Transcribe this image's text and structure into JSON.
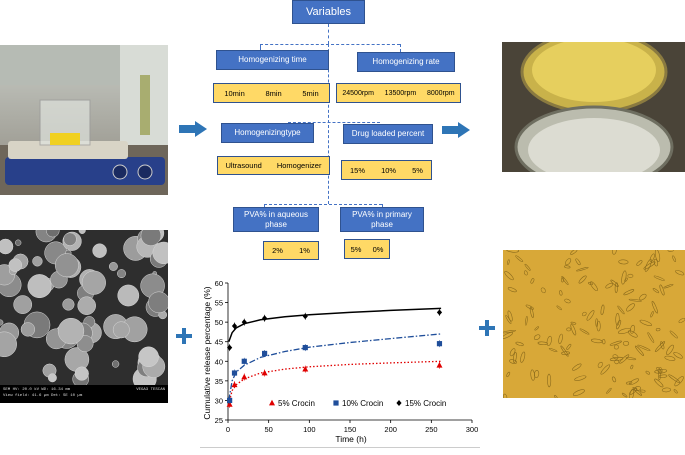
{
  "diagram": {
    "root": "Variables",
    "groups": [
      {
        "label": "Homogenizing time",
        "values": [
          "10min",
          "8min",
          "5min"
        ]
      },
      {
        "label": "Homogenizing rate",
        "values": [
          "24500rpm",
          "13500rpm",
          "8000rpm"
        ]
      },
      {
        "label": "Homogenizingtype",
        "values": [
          "Ultrasound",
          "Homogenizer"
        ]
      },
      {
        "label": "Drug loaded percent",
        "values": [
          "15%",
          "10%",
          "5%"
        ]
      },
      {
        "label": "PVA% in aqueous phase",
        "values": [
          "2%",
          "1%"
        ]
      },
      {
        "label": "PVA% in primary phase",
        "values": [
          "5%",
          "0%"
        ]
      }
    ]
  },
  "sem_overlay": {
    "line1": "SEM HV: 20.0 kV   WD: 16.34 mm",
    "line2": "View field: 41.6 µm   Det: SE   10 µm",
    "brand": "VEGA3 TESCAN"
  },
  "icons": {
    "arrow": "right-arrow-icon",
    "plus": "plus-icon"
  },
  "colors": {
    "accent": "#4472c4",
    "box_fill": "#ffd966",
    "red_series": "#e00000",
    "blue_series": "#1f4e9a",
    "black_series": "#000000"
  },
  "chart_data": {
    "type": "scatter",
    "title": "",
    "xlabel": "Time (h)",
    "ylabel": "Cumulative release percentage (%)",
    "xlim": [
      0,
      300
    ],
    "ylim": [
      25,
      60
    ],
    "xticks": [
      0,
      50,
      100,
      150,
      200,
      250,
      300
    ],
    "yticks": [
      25,
      30,
      35,
      40,
      45,
      50,
      55,
      60
    ],
    "legend_position": "bottom",
    "series": [
      {
        "name": "5% Crocin",
        "marker": "triangle",
        "color": "#e00000",
        "line": "dotted",
        "x": [
          2,
          8,
          20,
          45,
          95,
          260
        ],
        "y": [
          29,
          34,
          36,
          37,
          38,
          39
        ],
        "fit_x": [
          1,
          5,
          10,
          20,
          40,
          70,
          100,
          150,
          200,
          262
        ],
        "fit_y": [
          29.0,
          32.5,
          34.0,
          35.5,
          37.0,
          38.0,
          38.6,
          39.2,
          39.6,
          40.0
        ]
      },
      {
        "name": "10% Crocin",
        "marker": "square",
        "color": "#1f4e9a",
        "line": "dashdot",
        "x": [
          2,
          8,
          20,
          45,
          95,
          260
        ],
        "y": [
          30,
          37,
          40,
          42,
          43.5,
          44.5
        ],
        "fit_x": [
          1,
          5,
          10,
          20,
          40,
          70,
          100,
          150,
          200,
          262
        ],
        "fit_y": [
          30.0,
          35.0,
          37.2,
          39.0,
          41.0,
          42.5,
          43.6,
          44.8,
          45.8,
          47.0
        ]
      },
      {
        "name": "15% Crocin",
        "marker": "diamond",
        "color": "#000000",
        "line": "solid",
        "x": [
          2,
          8,
          20,
          45,
          95,
          260
        ],
        "y": [
          43.5,
          49,
          50,
          51,
          51.5,
          52.5
        ],
        "fit_x": [
          1,
          5,
          10,
          20,
          40,
          70,
          100,
          150,
          200,
          262
        ],
        "fit_y": [
          45.0,
          47.3,
          48.5,
          49.6,
          50.6,
          51.4,
          51.9,
          52.5,
          53.0,
          53.5
        ]
      }
    ]
  }
}
